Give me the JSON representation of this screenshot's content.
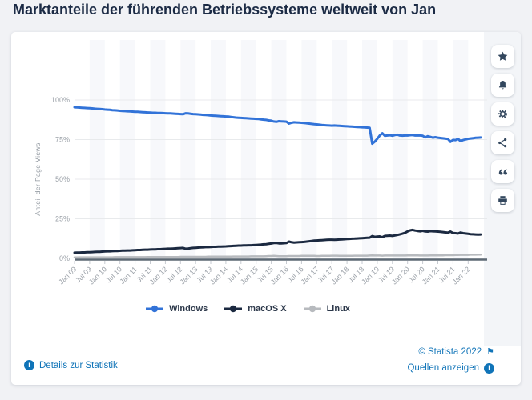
{
  "page": {
    "title": "Marktanteile der führenden Betriebssysteme weltweit von Jan",
    "background": "#f1f2f5"
  },
  "toolbar": {
    "buttons": [
      {
        "name": "favorite-button",
        "icon": "star-icon"
      },
      {
        "name": "alert-button",
        "icon": "bell-icon"
      },
      {
        "name": "settings-button",
        "icon": "gear-icon"
      },
      {
        "name": "share-button",
        "icon": "share-icon"
      },
      {
        "name": "cite-button",
        "icon": "quote-icon"
      },
      {
        "name": "print-button",
        "icon": "printer-icon"
      }
    ]
  },
  "chart_data": {
    "type": "line",
    "title": "Marktanteile der führenden Betriebssysteme weltweit von Jan",
    "xlabel": "",
    "ylabel": "Anteil der Page Views",
    "ylim": [
      0,
      100
    ],
    "yticks": [
      "0%",
      "25%",
      "50%",
      "75%",
      "100%"
    ],
    "grid": true,
    "legend_position": "bottom",
    "x_start": "Jan 09",
    "x_end": "Jun 22",
    "x_interval": "monthly",
    "x_tick_labels": [
      "Jan 09",
      "Jul 09",
      "Jan 10",
      "Jul 10",
      "Jan 11",
      "Jul 11",
      "Jan 12",
      "Jul 12",
      "Jan 13",
      "Jul 13",
      "Jan 14",
      "Jul 14",
      "Jan 15",
      "Jul 15",
      "Jan 16",
      "Jul 16",
      "Jan 17",
      "Jul 17",
      "Jan 18",
      "Jul 18",
      "Jan 19",
      "Jul 19",
      "Jan 20",
      "Jul 20",
      "Jan 21",
      "Jul 21",
      "Jan 22"
    ],
    "series": [
      {
        "name": "Windows",
        "color": "#3273d8",
        "values": [
          95.4,
          95.3,
          95.2,
          95.1,
          95.0,
          94.9,
          94.8,
          94.7,
          94.5,
          94.4,
          94.3,
          94.2,
          94.0,
          93.9,
          93.8,
          93.6,
          93.5,
          93.4,
          93.2,
          93.1,
          93.0,
          92.9,
          92.8,
          92.7,
          92.6,
          92.5,
          92.4,
          92.3,
          92.2,
          92.1,
          92.0,
          91.9,
          91.9,
          91.8,
          91.8,
          91.7,
          91.6,
          91.5,
          91.5,
          91.4,
          91.3,
          91.2,
          91.1,
          91.0,
          91.6,
          91.5,
          91.3,
          91.1,
          91.0,
          90.9,
          90.8,
          90.6,
          90.5,
          90.4,
          90.2,
          90.1,
          90.0,
          89.9,
          89.8,
          89.7,
          89.6,
          89.5,
          89.3,
          89.1,
          88.9,
          88.8,
          88.7,
          88.6,
          88.5,
          88.4,
          88.3,
          88.2,
          88.1,
          88.0,
          87.8,
          87.6,
          87.4,
          87.1,
          86.9,
          86.4,
          86.2,
          86.6,
          86.5,
          86.4,
          86.3,
          85.1,
          85.6,
          85.9,
          85.8,
          85.7,
          85.6,
          85.5,
          85.3,
          85.1,
          84.9,
          84.7,
          84.6,
          84.4,
          84.2,
          84.1,
          84.0,
          83.9,
          83.8,
          83.9,
          83.8,
          83.7,
          83.6,
          83.5,
          83.4,
          83.3,
          83.2,
          83.1,
          83.0,
          82.9,
          82.8,
          82.7,
          82.6,
          82.4,
          72.4,
          73.7,
          75.5,
          77.6,
          79.0,
          77.4,
          77.6,
          77.8,
          77.4,
          77.9,
          78.1,
          77.6,
          77.5,
          77.6,
          77.6,
          77.8,
          77.9,
          77.6,
          77.7,
          77.6,
          77.4,
          76.4,
          77.1,
          76.7,
          76.2,
          76.5,
          76.2,
          76.0,
          75.8,
          75.6,
          75.4,
          73.6,
          74.8,
          74.7,
          75.4,
          74.1,
          74.7,
          75.1,
          75.5,
          75.7,
          75.9,
          76.1,
          76.2,
          76.3
        ]
      },
      {
        "name": "macOS X",
        "color": "#1b2940",
        "values": [
          3.6,
          3.7,
          3.7,
          3.8,
          3.8,
          3.9,
          3.9,
          4.0,
          4.1,
          4.2,
          4.2,
          4.3,
          4.4,
          4.5,
          4.5,
          4.6,
          4.7,
          4.7,
          4.8,
          4.9,
          4.9,
          5.0,
          5.0,
          5.1,
          5.2,
          5.3,
          5.3,
          5.4,
          5.5,
          5.5,
          5.6,
          5.7,
          5.7,
          5.8,
          5.8,
          5.9,
          6.0,
          6.1,
          6.1,
          6.2,
          6.3,
          6.4,
          6.5,
          6.6,
          6.1,
          6.2,
          6.4,
          6.6,
          6.7,
          6.8,
          6.9,
          7.0,
          7.1,
          7.1,
          7.2,
          7.3,
          7.3,
          7.4,
          7.4,
          7.5,
          7.6,
          7.7,
          7.8,
          7.9,
          8.0,
          8.1,
          8.1,
          8.2,
          8.2,
          8.3,
          8.3,
          8.4,
          8.5,
          8.6,
          8.7,
          8.9,
          9.0,
          9.2,
          9.4,
          9.7,
          9.8,
          9.5,
          9.5,
          9.6,
          9.7,
          10.6,
          10.2,
          10.0,
          10.1,
          10.2,
          10.3,
          10.4,
          10.6,
          10.8,
          11.0,
          11.2,
          11.3,
          11.4,
          11.5,
          11.6,
          11.7,
          11.8,
          11.8,
          11.7,
          11.8,
          11.9,
          12.0,
          12.1,
          12.2,
          12.3,
          12.4,
          12.5,
          12.6,
          12.7,
          12.8,
          12.9,
          13.0,
          13.1,
          14.1,
          13.6,
          13.8,
          13.9,
          13.4,
          14.2,
          14.3,
          14.4,
          14.2,
          14.5,
          14.8,
          15.2,
          15.6,
          16.1,
          17.0,
          17.7,
          18.0,
          17.6,
          17.3,
          17.1,
          17.4,
          17.0,
          16.9,
          17.2,
          17.1,
          17.0,
          16.9,
          16.8,
          16.6,
          16.4,
          16.2,
          16.9,
          16.0,
          15.9,
          15.7,
          16.3,
          15.9,
          15.7,
          15.5,
          15.3,
          15.2,
          15.1,
          15.0,
          15.1
        ]
      },
      {
        "name": "Linux",
        "color": "#b7babe",
        "values": [
          0.6,
          0.6,
          0.7,
          0.7,
          0.7,
          0.7,
          0.7,
          0.7,
          0.7,
          0.7,
          0.7,
          0.7,
          0.7,
          0.7,
          0.7,
          0.7,
          0.8,
          0.8,
          0.8,
          0.8,
          0.8,
          0.8,
          0.8,
          0.8,
          0.8,
          0.8,
          0.8,
          0.8,
          0.8,
          0.9,
          0.9,
          0.9,
          0.9,
          0.9,
          0.9,
          0.9,
          0.9,
          0.9,
          0.9,
          0.9,
          0.9,
          0.9,
          1.0,
          1.0,
          1.0,
          1.0,
          1.0,
          1.0,
          1.0,
          1.0,
          1.0,
          1.0,
          1.0,
          1.1,
          1.1,
          1.1,
          1.1,
          1.1,
          1.1,
          1.1,
          1.1,
          1.1,
          1.1,
          1.2,
          1.2,
          1.2,
          1.2,
          1.2,
          1.2,
          1.2,
          1.3,
          1.3,
          1.3,
          1.3,
          1.3,
          1.3,
          1.4,
          1.5,
          1.5,
          1.6,
          1.5,
          1.4,
          1.4,
          1.4,
          1.4,
          1.5,
          1.5,
          1.5,
          1.5,
          1.5,
          1.6,
          1.6,
          1.6,
          1.6,
          1.6,
          1.6,
          1.5,
          1.5,
          1.6,
          1.6,
          1.6,
          1.6,
          1.7,
          1.7,
          1.7,
          1.6,
          1.6,
          1.6,
          1.6,
          1.6,
          1.6,
          1.7,
          1.7,
          1.7,
          1.7,
          1.7,
          1.7,
          1.8,
          1.9,
          1.8,
          1.8,
          1.8,
          1.7,
          1.8,
          1.8,
          1.8,
          1.8,
          1.8,
          1.8,
          1.8,
          1.8,
          1.8,
          1.9,
          1.9,
          1.9,
          1.9,
          1.9,
          1.8,
          1.8,
          1.8,
          1.8,
          1.9,
          1.9,
          1.9,
          1.9,
          1.9,
          1.9,
          2.0,
          2.0,
          2.0,
          2.0,
          2.1,
          2.1,
          2.2,
          2.2,
          2.2,
          2.2,
          2.3,
          2.3,
          2.3,
          2.4,
          2.4
        ]
      }
    ]
  },
  "footer": {
    "details_label": "Details zur Statistik",
    "copyright": "© Statista 2022",
    "sources_label": "Quellen anzeigen"
  },
  "colors": {
    "link": "#1074b8",
    "windows_line": "#3273d8",
    "macos_line": "#1b2940",
    "linux_line": "#b7babe",
    "title_text": "#1c2b45"
  }
}
